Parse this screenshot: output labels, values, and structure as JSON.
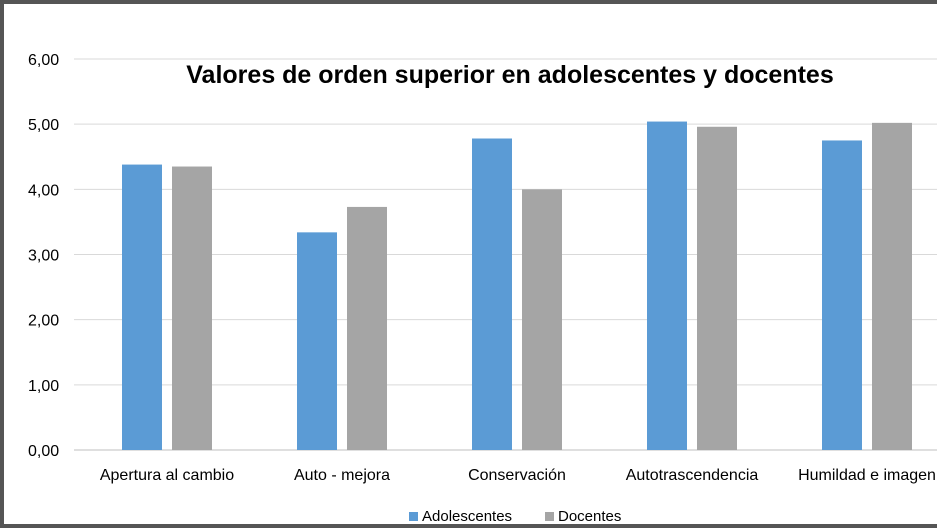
{
  "chart_data": {
    "type": "bar",
    "title": "Valores de orden superior en adolescentes y docentes",
    "xlabel": "",
    "ylabel": "",
    "categories": [
      "Apertura al cambio",
      "Auto - mejora",
      "Conservación",
      "Autotrascendencia",
      "Humildad e imagen"
    ],
    "series": [
      {
        "name": "Adolescentes",
        "color": "#5b9bd5",
        "values": [
          4.38,
          3.34,
          4.78,
          5.04,
          4.75
        ]
      },
      {
        "name": "Docentes",
        "color": "#a5a5a5",
        "values": [
          4.35,
          3.73,
          4.0,
          4.96,
          5.02
        ]
      }
    ],
    "ylim": [
      0,
      6
    ],
    "yticks": [
      "0,00",
      "1,00",
      "2,00",
      "3,00",
      "4,00",
      "5,00",
      "6,00"
    ],
    "grid": true,
    "legend_position": "bottom"
  }
}
